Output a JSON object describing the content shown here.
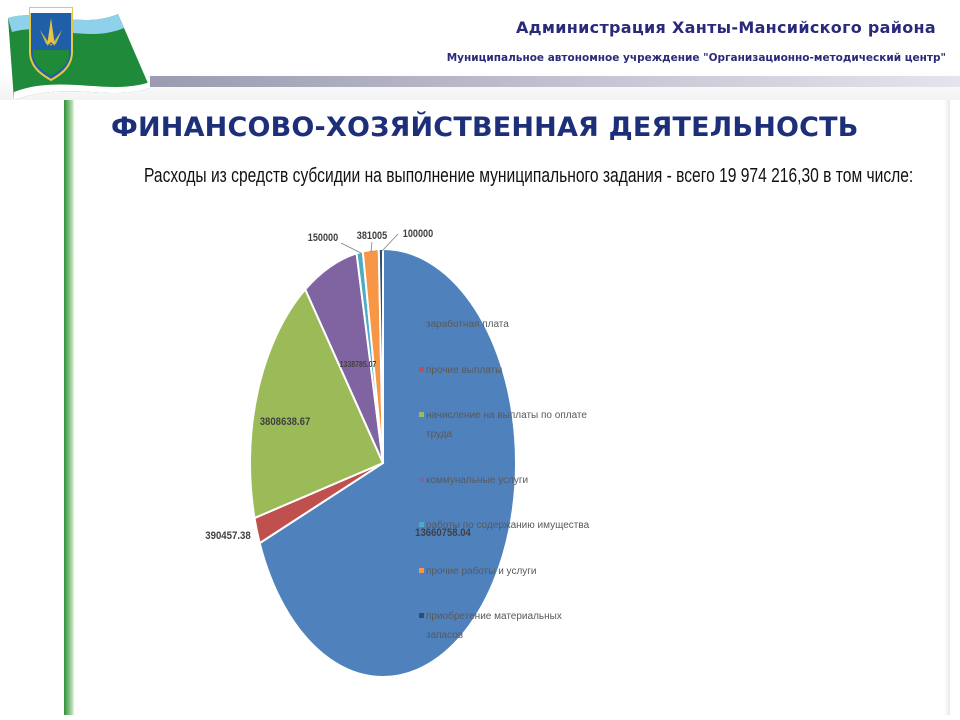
{
  "header": {
    "org_title": "Администрация Ханты-Мансийского района",
    "org_subtitle": "Муниципальное автономное учреждение \"Организационно-методический центр\""
  },
  "page": {
    "title": "ФИНАНСОВО-ХОЗЯЙСТВЕННАЯ ДЕЯТЕЛЬНОСТЬ",
    "caption": "Расходы из средств субсидии на выполнение муниципального задания  - всего 19 974 216,30  в том числе:"
  },
  "colors": {
    "accent_title": "#1e2f7a",
    "header_text": "#2a2a7a",
    "left_bar": "#2f8f3a"
  },
  "chart_data": {
    "type": "pie",
    "title": "",
    "legend_position": "center",
    "slices": [
      {
        "name": "заработная плата",
        "value": 13660758.04,
        "label": "13660758.04",
        "color": "#4f81bd"
      },
      {
        "name": "прочие выплаты",
        "value": 390457.38,
        "label": "390457.38",
        "color": "#c0504d"
      },
      {
        "name": "начисление на выплаты по оплате труда",
        "value": 3808638.67,
        "label": "3808638.67",
        "color": "#9bbb59"
      },
      {
        "name": "коммунальные услуги",
        "value": 1338785.07,
        "label": "1338785.07",
        "color": "#8064a2"
      },
      {
        "name": "работы по содержанию имущества",
        "value": 150000,
        "label": "150000",
        "color": "#4bacc6"
      },
      {
        "name": "прочие работы и услуги",
        "value": 381005,
        "label": "381005",
        "color": "#f79646"
      },
      {
        "name": "приобретение материальных запасов",
        "value": 100000,
        "label": "100000",
        "color": "#2c4d75"
      }
    ]
  }
}
